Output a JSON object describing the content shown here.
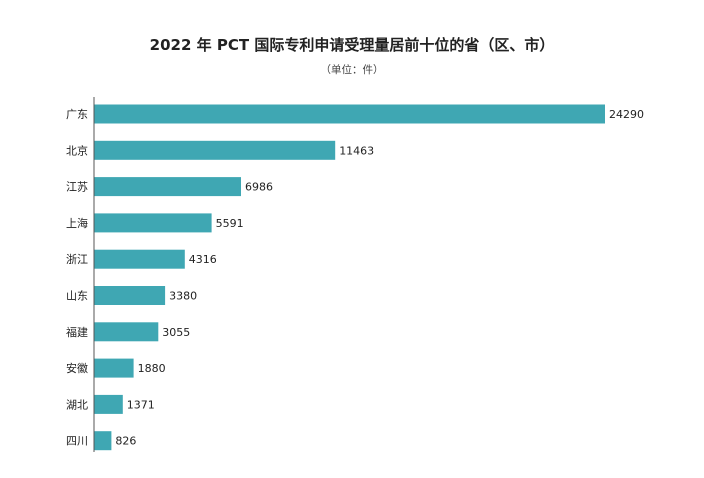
{
  "chart_data": {
    "type": "bar",
    "orientation": "horizontal",
    "title": "2022 年 PCT 国际专利申请受理量居前十位的省（区、市）",
    "subtitle": "（单位：件）",
    "categories": [
      "广东",
      "北京",
      "江苏",
      "上海",
      "浙江",
      "山东",
      "福建",
      "安徽",
      "湖北",
      "四川"
    ],
    "values": [
      24290,
      11463,
      6986,
      5591,
      4316,
      3380,
      3055,
      1880,
      1371,
      826
    ],
    "xlabel": "",
    "ylabel": "",
    "xlim": [
      0,
      24290
    ],
    "grid": false,
    "legend": "none",
    "bar_color": "#3fa7b3",
    "axis_color": "#555555"
  }
}
